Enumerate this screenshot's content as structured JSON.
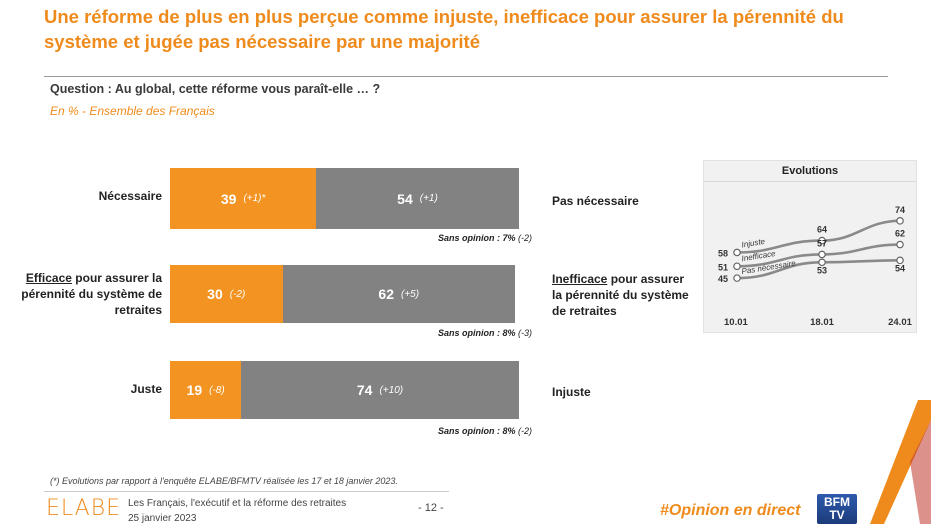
{
  "header": {
    "title": "Une réforme de plus en plus perçue comme injuste, inefficace pour assurer la pérennité du système et jugée pas nécessaire par une majorité",
    "question": "Question : Au global, cette réforme vous paraît-elle … ?",
    "subtitle": "En % - Ensemble des Français"
  },
  "chart_data": [
    {
      "type": "bar",
      "orientation": "horizontal-stacked",
      "rows": [
        {
          "left_label_underlined": "",
          "left_label": "Nécessaire",
          "right_label_underlined": "",
          "right_label": "Pas nécessaire",
          "left_value": 39,
          "left_value_text": "39",
          "left_delta": "(+1)*",
          "right_value": 54,
          "right_value_text": "54",
          "right_delta": "(+1)",
          "no_opinion": "Sans opinion : 7%",
          "no_opinion_delta": "(-2)"
        },
        {
          "left_label_underlined": "Efficace",
          "left_label": " pour assurer la pérennité du système de retraites",
          "right_label_underlined": "Inefficace",
          "right_label": " pour assurer la pérennité du système de retraites",
          "left_value": 30,
          "left_value_text": "30",
          "left_delta": "(-2)",
          "right_value": 62,
          "right_value_text": "62",
          "right_delta": "(+5)",
          "no_opinion": "Sans opinion : 8%",
          "no_opinion_delta": "(-3)"
        },
        {
          "left_label_underlined": "",
          "left_label": "Juste",
          "right_label_underlined": "",
          "right_label": "Injuste",
          "left_value": 19,
          "left_value_text": "19",
          "left_delta": "(-8)",
          "right_value": 74,
          "right_value_text": "74",
          "right_delta": "(+10)",
          "no_opinion": "Sans opinion : 8%",
          "no_opinion_delta": "(-2)"
        }
      ]
    },
    {
      "type": "line",
      "title": "Evolutions",
      "x": [
        "10.01",
        "18.01",
        "24.01"
      ],
      "ylim": [
        40,
        80
      ],
      "series": [
        {
          "name": "Injuste",
          "values": [
            58,
            64,
            74
          ],
          "labels": [
            "58",
            "64",
            "74"
          ]
        },
        {
          "name": "Inefficace",
          "values": [
            51,
            57,
            62
          ],
          "labels": [
            "51",
            "57",
            "62"
          ]
        },
        {
          "name": "Pas nécessaire",
          "values": [
            45,
            53,
            54
          ],
          "labels": [
            "45",
            "53",
            "54"
          ]
        }
      ]
    }
  ],
  "footer": {
    "footnote": "(*) Evolutions par rapport à l'enquête ELABE/BFMTV réalisée les 17 et 18 janvier 2023.",
    "logo": "ELABE",
    "doc_title": "Les Français, l'exécutif et la réforme des retraites",
    "date": "25 janvier 2023",
    "page": "- 12 -",
    "hashtag": "#Opinion en direct",
    "channel_logo": "BFM TV"
  },
  "colors": {
    "accent": "#ef8b1c",
    "bar_orange": "#f39422",
    "bar_grey": "#828282",
    "line_grey": "#8a8a8a"
  }
}
